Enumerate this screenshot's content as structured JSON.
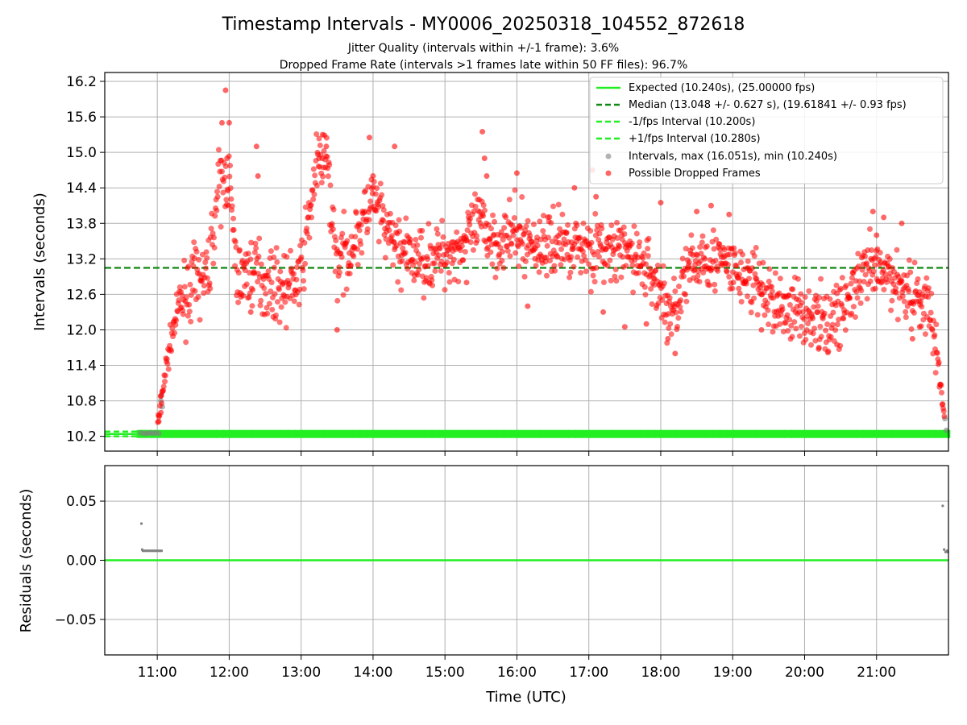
{
  "figure": {
    "title": "Timestamp Intervals - MY0006_20250318_104552_872618",
    "subtitle_line1": "Jitter Quality (intervals within +/-1 frame): 3.6%",
    "subtitle_line2": "Dropped Frame Rate (intervals >1 frames late within 50 FF files): 96.7%"
  },
  "chart_data": [
    {
      "type": "scatter",
      "ylabel": "Intervals (seconds)",
      "xlabel": "",
      "xlim_hours": [
        10.27,
        22.0
      ],
      "ylim": [
        9.95,
        16.35
      ],
      "yticks": [
        "10.2",
        "10.8",
        "11.4",
        "12.0",
        "12.6",
        "13.2",
        "13.8",
        "14.4",
        "15.0",
        "15.6",
        "16.2"
      ],
      "ytick_values": [
        10.2,
        10.8,
        11.4,
        12.0,
        12.6,
        13.2,
        13.8,
        14.4,
        15.0,
        15.6,
        16.2
      ],
      "xtick_values_hours": [
        11,
        12,
        13,
        14,
        15,
        16,
        17,
        18,
        19,
        20,
        21
      ],
      "grid": true,
      "legend_position": "top-right",
      "reference_lines": [
        {
          "name": "Expected (10.240s), (25.00000 fps)",
          "y": 10.24,
          "color": "#22ee22",
          "style": "solid"
        },
        {
          "name": "Median (13.048 +/- 0.627 s), (19.61841 +/- 0.93 fps)",
          "y": 13.048,
          "color": "#118811",
          "style": "dashed"
        },
        {
          "name": "-1/fps Interval (10.200s)",
          "y": 10.2,
          "color": "#22ee22",
          "style": "dashed"
        },
        {
          "name": "+1/fps Interval (10.280s)",
          "y": 10.28,
          "color": "#22ee22",
          "style": "dashed"
        }
      ],
      "series": [
        {
          "name": "Intervals, max (16.051s), min (10.240s)",
          "color": "#808080",
          "points": [
            [
              10.77,
              10.26
            ],
            [
              10.82,
              10.25
            ],
            [
              10.86,
              10.25
            ],
            [
              10.9,
              10.26
            ],
            [
              10.94,
              10.25
            ],
            [
              10.98,
              10.26
            ],
            [
              11.02,
              10.25
            ],
            [
              11.05,
              10.8
            ],
            [
              11.06,
              10.9
            ],
            [
              11.07,
              10.7
            ],
            [
              21.95,
              10.5
            ],
            [
              21.97,
              10.3
            ]
          ]
        },
        {
          "name": "Possible Dropped Frames",
          "color": "#ff0000",
          "trend": [
            [
              11.0,
              10.3
            ],
            [
              11.1,
              11.2
            ],
            [
              11.2,
              11.9
            ],
            [
              11.3,
              12.4
            ],
            [
              11.5,
              12.8
            ],
            [
              11.7,
              12.9
            ],
            [
              11.85,
              14.4
            ],
            [
              12.0,
              14.6
            ],
            [
              12.1,
              12.9
            ],
            [
              12.4,
              13.0
            ],
            [
              12.5,
              12.8
            ],
            [
              12.8,
              12.7
            ],
            [
              13.0,
              12.9
            ],
            [
              13.2,
              14.7
            ],
            [
              13.35,
              14.9
            ],
            [
              13.5,
              13.1
            ],
            [
              13.7,
              13.4
            ],
            [
              14.0,
              14.2
            ],
            [
              14.2,
              13.6
            ],
            [
              14.5,
              13.2
            ],
            [
              14.8,
              13.2
            ],
            [
              15.2,
              13.4
            ],
            [
              15.5,
              13.8
            ],
            [
              15.7,
              13.5
            ],
            [
              16.0,
              13.6
            ],
            [
              16.3,
              13.4
            ],
            [
              16.6,
              13.5
            ],
            [
              17.0,
              13.4
            ],
            [
              17.3,
              13.3
            ],
            [
              17.6,
              13.3
            ],
            [
              17.9,
              12.9
            ],
            [
              18.15,
              12.2
            ],
            [
              18.3,
              12.8
            ],
            [
              18.6,
              13.3
            ],
            [
              19.0,
              13.0
            ],
            [
              19.3,
              12.8
            ],
            [
              19.6,
              12.4
            ],
            [
              20.0,
              12.3
            ],
            [
              20.3,
              12.1
            ],
            [
              20.6,
              12.5
            ],
            [
              20.9,
              13.0
            ],
            [
              21.2,
              12.9
            ],
            [
              21.5,
              12.6
            ],
            [
              21.7,
              12.5
            ],
            [
              21.85,
              11.5
            ],
            [
              21.95,
              10.5
            ]
          ],
          "spikes": [
            [
              11.95,
              16.05
            ],
            [
              11.9,
              15.5
            ],
            [
              12.0,
              15.5
            ],
            [
              11.97,
              14.9
            ],
            [
              12.38,
              15.1
            ],
            [
              12.4,
              14.6
            ],
            [
              13.3,
              15.3
            ],
            [
              13.35,
              15.1
            ],
            [
              13.25,
              14.9
            ],
            [
              13.95,
              15.25
            ],
            [
              14.3,
              15.1
            ],
            [
              14.0,
              14.6
            ],
            [
              15.52,
              15.35
            ],
            [
              15.55,
              14.9
            ],
            [
              15.58,
              14.6
            ],
            [
              16.0,
              14.65
            ],
            [
              16.8,
              14.4
            ],
            [
              17.05,
              14.7
            ],
            [
              17.1,
              14.25
            ],
            [
              18.0,
              14.15
            ],
            [
              18.5,
              14.0
            ],
            [
              18.7,
              14.1
            ],
            [
              18.95,
              13.95
            ],
            [
              20.95,
              14.0
            ],
            [
              21.1,
              13.9
            ],
            [
              21.0,
              13.6
            ],
            [
              21.35,
              13.8
            ],
            [
              12.3,
              12.3
            ],
            [
              13.5,
              12.0
            ],
            [
              18.1,
              11.85
            ],
            [
              18.2,
              11.6
            ],
            [
              15.3,
              12.8
            ],
            [
              16.15,
              12.4
            ],
            [
              17.2,
              12.3
            ],
            [
              17.5,
              12.05
            ],
            [
              17.8,
              12.1
            ],
            [
              19.4,
              12.0
            ],
            [
              20.2,
              11.7
            ],
            [
              20.45,
              11.75
            ],
            [
              21.5,
              11.85
            ],
            [
              21.6,
              12.05
            ],
            [
              11.02,
              10.45
            ],
            [
              11.05,
              10.6
            ]
          ]
        }
      ]
    },
    {
      "type": "scatter",
      "ylabel": "Residuals (seconds)",
      "xlabel": "Time (UTC)",
      "xlim_hours": [
        10.27,
        22.0
      ],
      "ylim": [
        -0.08,
        0.08
      ],
      "yticks": [
        "0.05",
        "0.00",
        "−0.05"
      ],
      "ytick_values": [
        0.05,
        0.0,
        -0.05
      ],
      "xticks": [
        "11:00",
        "12:00",
        "13:00",
        "14:00",
        "15:00",
        "16:00",
        "17:00",
        "18:00",
        "19:00",
        "20:00",
        "21:00"
      ],
      "xtick_values_hours": [
        11,
        12,
        13,
        14,
        15,
        16,
        17,
        18,
        19,
        20,
        21
      ],
      "grid": true,
      "reference_lines": [
        {
          "name": "zero",
          "y": 0.0,
          "color": "#22ee22",
          "style": "solid"
        }
      ],
      "series": [
        {
          "name": "Residuals",
          "color": "#808080",
          "points": [
            [
              10.78,
              0.031
            ],
            [
              10.79,
              0.009
            ],
            [
              10.8,
              0.008
            ],
            [
              10.82,
              0.008
            ],
            [
              10.84,
              0.008
            ],
            [
              10.86,
              0.008
            ],
            [
              10.88,
              0.008
            ],
            [
              10.9,
              0.008
            ],
            [
              10.92,
              0.008
            ],
            [
              10.94,
              0.008
            ],
            [
              10.96,
              0.008
            ],
            [
              10.98,
              0.008
            ],
            [
              11.0,
              0.008
            ],
            [
              11.02,
              0.008
            ],
            [
              11.04,
              0.008
            ],
            [
              11.06,
              0.008
            ],
            [
              21.92,
              0.046
            ],
            [
              21.94,
              0.009
            ],
            [
              21.96,
              0.007
            ],
            [
              21.98,
              0.008
            ],
            [
              21.99,
              0.007
            ]
          ]
        }
      ]
    }
  ]
}
